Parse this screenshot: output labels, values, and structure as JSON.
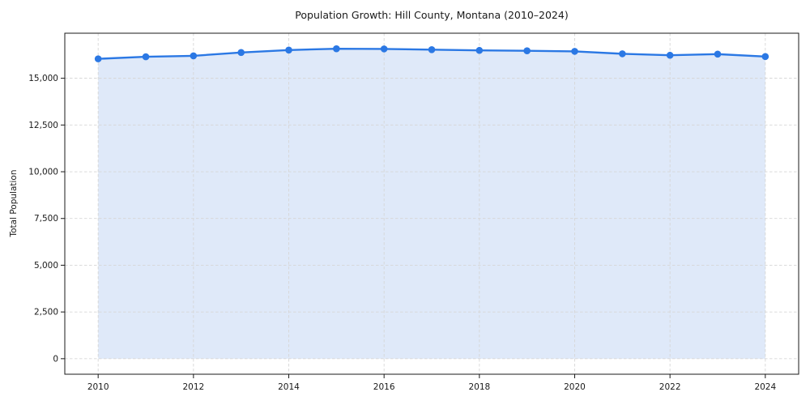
{
  "chart_data": {
    "type": "line",
    "title": "Population Growth: Hill County, Montana (2010–2024)",
    "xlabel": "",
    "ylabel": "Total Population",
    "series_name": "Total Population",
    "x": [
      2010,
      2011,
      2012,
      2013,
      2014,
      2015,
      2016,
      2017,
      2018,
      2019,
      2020,
      2021,
      2022,
      2023,
      2024
    ],
    "values": [
      16040,
      16150,
      16200,
      16380,
      16510,
      16580,
      16570,
      16530,
      16490,
      16470,
      16440,
      16310,
      16230,
      16290,
      16160
    ],
    "xlim": [
      2009.3,
      2024.7
    ],
    "ylim": [
      -830,
      17410
    ],
    "xticks": {
      "values": [
        2010,
        2012,
        2014,
        2016,
        2018,
        2020,
        2022,
        2024
      ],
      "labels": [
        "2010",
        "2012",
        "2014",
        "2016",
        "2018",
        "2020",
        "2022",
        "2024"
      ]
    },
    "yticks": {
      "values": [
        0,
        2500,
        5000,
        7500,
        10000,
        12500,
        15000
      ],
      "labels": [
        "0",
        "2,500",
        "5,000",
        "7,500",
        "10,000",
        "12,500",
        "15,000"
      ]
    },
    "grid": true,
    "grid_style": "dashed",
    "legend": false,
    "area_fill": true,
    "marker": "circle",
    "colors": {
      "line": "#2b78e4",
      "area": "#dfe9f9",
      "grid": "#d6d6d6",
      "spine": "#1a1a1a",
      "text": "#1a1a1a",
      "background": "#ffffff"
    }
  }
}
